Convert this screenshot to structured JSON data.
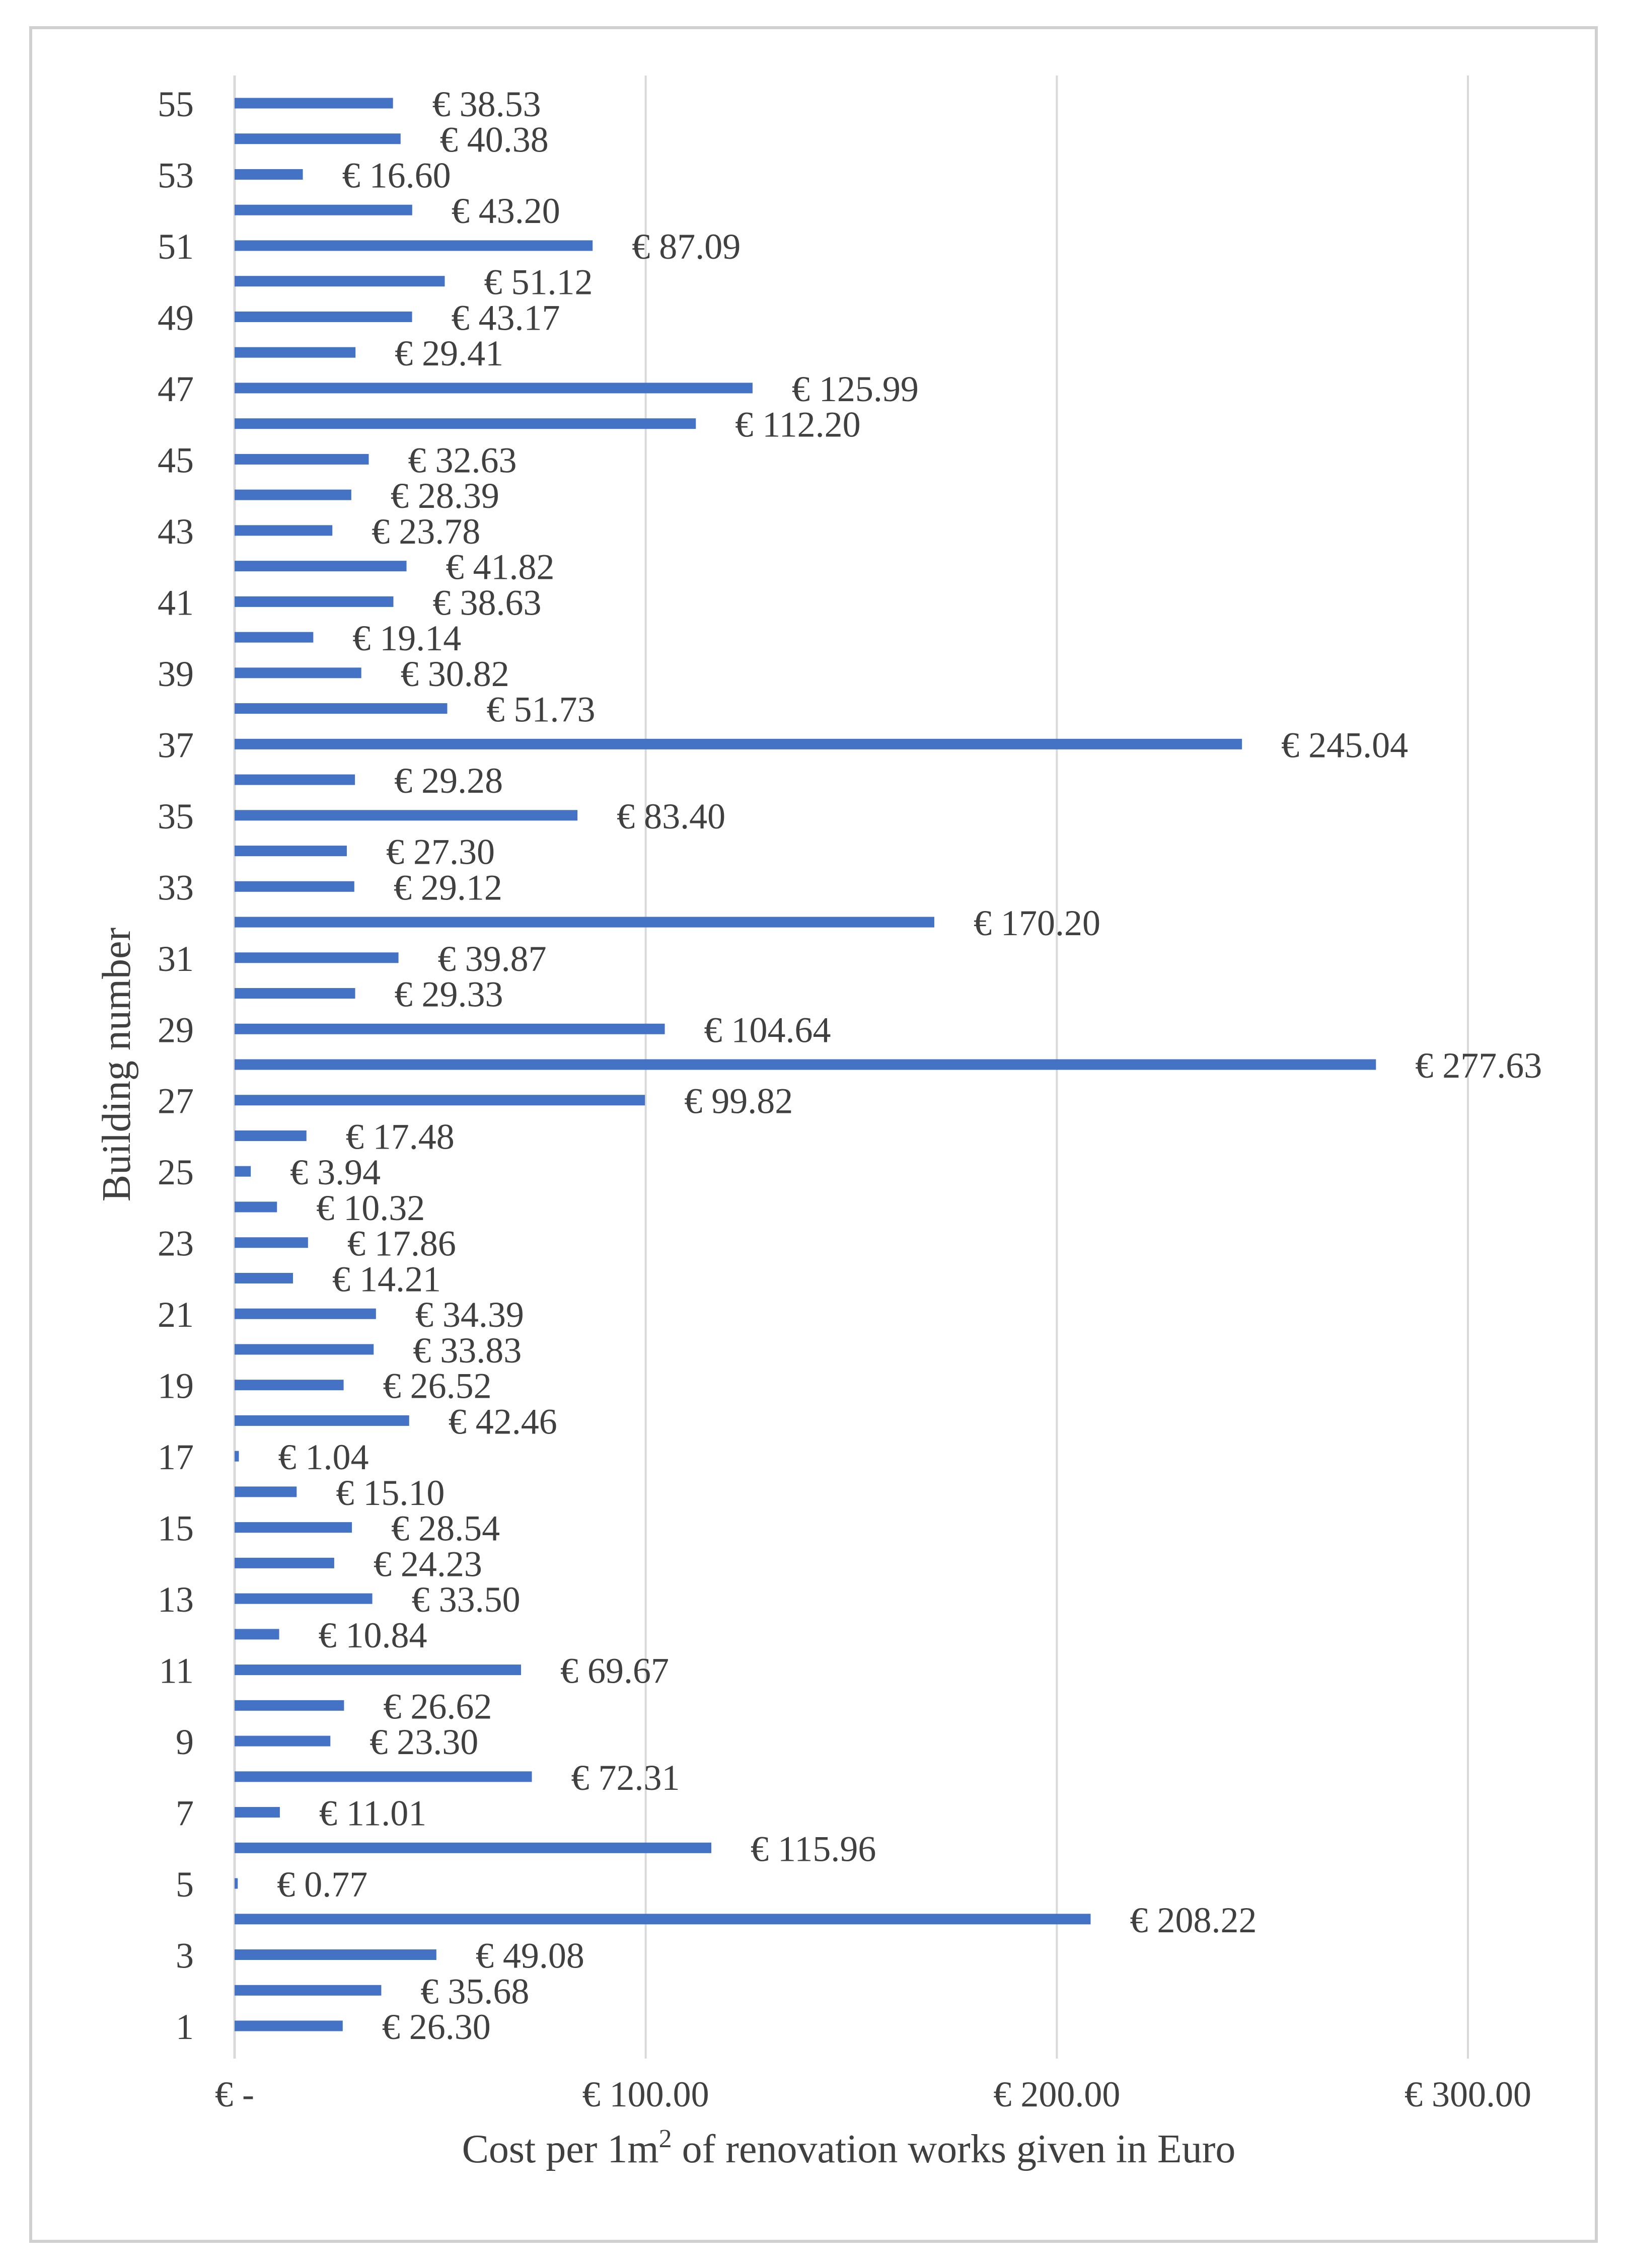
{
  "chart_data": {
    "type": "bar",
    "orientation": "horizontal",
    "xlabel": "Cost per 1m",
    "xlabel_superscript": "2",
    "xlabel_suffix": " of renovation works given in Euro",
    "ylabel": "Building number",
    "xlim": [
      0,
      300
    ],
    "grid": true,
    "bar_color": "#4472c4",
    "grid_color": "#d9d9d9",
    "x_ticks": [
      {
        "value": 0,
        "label": "€ -"
      },
      {
        "value": 100,
        "label": "€ 100.00"
      },
      {
        "value": 200,
        "label": "€ 200.00"
      },
      {
        "value": 300,
        "label": "€ 300.00"
      }
    ],
    "y_tick_labels": [
      "1",
      "3",
      "5",
      "7",
      "9",
      "11",
      "13",
      "15",
      "17",
      "19",
      "21",
      "23",
      "25",
      "27",
      "29",
      "31",
      "33",
      "35",
      "37",
      "39",
      "41",
      "43",
      "45",
      "47",
      "49",
      "51",
      "53",
      "55"
    ],
    "categories": [
      "1",
      "2",
      "3",
      "4",
      "5",
      "6",
      "7",
      "8",
      "9",
      "10",
      "11",
      "12",
      "13",
      "14",
      "15",
      "16",
      "17",
      "18",
      "19",
      "20",
      "21",
      "22",
      "23",
      "24",
      "25",
      "26",
      "27",
      "28",
      "29",
      "30",
      "31",
      "32",
      "33",
      "34",
      "35",
      "36",
      "37",
      "38",
      "39",
      "40",
      "41",
      "42",
      "43",
      "44",
      "45",
      "46",
      "47",
      "48",
      "49",
      "50",
      "51",
      "52",
      "53",
      "54",
      "55"
    ],
    "values": [
      26.3,
      35.68,
      49.08,
      208.22,
      0.77,
      115.96,
      11.01,
      72.31,
      23.3,
      26.62,
      69.67,
      10.84,
      33.5,
      24.23,
      28.54,
      15.1,
      1.04,
      42.46,
      26.52,
      33.83,
      34.39,
      14.21,
      17.86,
      10.32,
      3.94,
      17.48,
      99.82,
      277.63,
      104.64,
      29.33,
      39.87,
      170.2,
      29.12,
      27.3,
      83.4,
      29.28,
      245.04,
      51.73,
      30.82,
      19.14,
      38.63,
      41.82,
      23.78,
      28.39,
      32.63,
      112.2,
      125.99,
      29.41,
      43.17,
      51.12,
      87.09,
      43.2,
      16.6,
      40.38,
      38.53
    ],
    "data_labels": [
      "€ 26.30",
      "€ 35.68",
      "€ 49.08",
      "€ 208.22",
      "€ 0.77",
      "€ 115.96",
      "€ 11.01",
      "€ 72.31",
      "€ 23.30",
      "€ 26.62",
      "€ 69.67",
      "€ 10.84",
      "€ 33.50",
      "€ 24.23",
      "€ 28.54",
      "€ 15.10",
      "€ 1.04",
      "€ 42.46",
      "€ 26.52",
      "€ 33.83",
      "€ 34.39",
      "€ 14.21",
      "€ 17.86",
      "€ 10.32",
      "€ 3.94",
      "€ 17.48",
      "€ 99.82",
      "€ 277.63",
      "€ 104.64",
      "€ 29.33",
      "€ 39.87",
      "€ 170.20",
      "€ 29.12",
      "€ 27.30",
      "€ 83.40",
      "€ 29.28",
      "€ 245.04",
      "€ 51.73",
      "€ 30.82",
      "€ 19.14",
      "€ 38.63",
      "€ 41.82",
      "€ 23.78",
      "€ 28.39",
      "€ 32.63",
      "€ 112.20",
      "€ 125.99",
      "€ 29.41",
      "€ 43.17",
      "€ 51.12",
      "€ 87.09",
      "€ 43.20",
      "€ 16.60",
      "€ 40.38",
      "€ 38.53"
    ]
  }
}
